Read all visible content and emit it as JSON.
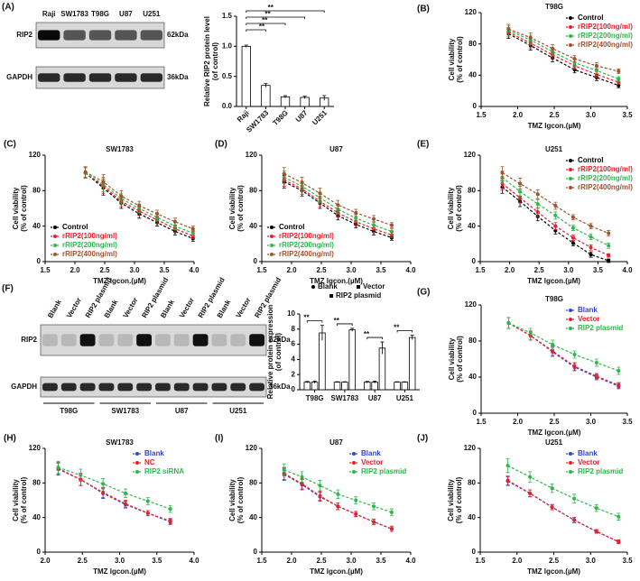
{
  "blots": [
    {
      "panel": "(A)",
      "lanes": [
        "Raji",
        "SW1783",
        "T98G",
        "U87",
        "U251"
      ],
      "rows": [
        {
          "label": "RIP2",
          "size": "62kDa"
        },
        {
          "label": "GAPDH",
          "size": "36kDa"
        }
      ]
    },
    {
      "panel": "(F)",
      "lanes": [
        "Blank",
        "Vector",
        "RIP2 plasmid",
        "Blank",
        "Vector",
        "RIP2 plasmid",
        "Blank",
        "Vector",
        "RIP2 plasmid",
        "Blank",
        "Vector",
        "RIP2 plasmid"
      ],
      "groups": [
        "T98G",
        "SW1783",
        "U87",
        "U251"
      ],
      "rows": [
        {
          "label": "RIP2",
          "size": "62kDa"
        },
        {
          "label": "GAPDH",
          "size": "36kDa"
        }
      ]
    }
  ],
  "chart_data": [
    {
      "type": "bar",
      "ylabel": [
        "Relative RIP2 protein level",
        "(of control)"
      ],
      "categories": [
        "Raji",
        "SW1783",
        "T98G",
        "U87",
        "U251"
      ],
      "values": [
        1.0,
        0.35,
        0.16,
        0.15,
        0.14
      ],
      "errors": [
        0.02,
        0.03,
        0.02,
        0.02,
        0.04
      ],
      "color": "#ffffff",
      "ylim": [
        0,
        1.5
      ],
      "yticks": [
        {
          "value": 0,
          "label": "0.0"
        },
        0.5,
        {
          "value": 1,
          "label": "1.0"
        },
        1.5
      ],
      "xtick_rotation": 45,
      "significance": [
        {
          "label": "**",
          "pair": [
            "Raji",
            "SW1783"
          ]
        },
        {
          "label": "**",
          "pair": [
            "Raji",
            "T98G"
          ]
        },
        {
          "label": "**",
          "pair": [
            "Raji",
            "U87"
          ]
        },
        {
          "label": "**",
          "pair": [
            "Raji",
            "U251"
          ]
        }
      ]
    },
    {
      "type": "line",
      "panel": "(B)",
      "title": "T98G",
      "ylabel": [
        "Cell viability",
        "(% of control)"
      ],
      "xlabel": "TMZ lgcon.(µM)",
      "legend": "upper right",
      "x": [
        1.875,
        2.176,
        2.477,
        2.778,
        3.079,
        3.38
      ],
      "xlim": [
        1.5,
        3.5
      ],
      "xticks": [
        1.5,
        {
          "value": 2,
          "label": "2.0"
        },
        2.5,
        {
          "value": 3,
          "label": "3.0"
        },
        3.5
      ],
      "ylim": [
        0,
        120
      ],
      "yticks": [
        0,
        40,
        80,
        120
      ],
      "series": [
        {
          "name": "Control",
          "color": "#000000",
          "values": [
            93,
            78,
            62,
            47,
            37,
            27
          ],
          "errors": [
            6,
            6,
            5,
            4,
            4,
            3
          ]
        },
        {
          "name": "rRIP2(100ng/ml)",
          "color": "#e8202a",
          "values": [
            95,
            81,
            66,
            52,
            41,
            31
          ],
          "errors": [
            6,
            6,
            5,
            4,
            4,
            3
          ]
        },
        {
          "name": "rRIP2(200ng/ml)",
          "color": "#2db84a",
          "values": [
            97,
            85,
            70,
            56,
            46,
            35
          ],
          "errors": [
            6,
            6,
            5,
            4,
            4,
            3
          ]
        },
        {
          "name": "rRIP2(400ng/ml)",
          "color": "#a0522d",
          "values": [
            99,
            88,
            74,
            61,
            52,
            45
          ],
          "errors": [
            6,
            6,
            5,
            4,
            4,
            3
          ]
        }
      ]
    },
    {
      "type": "line",
      "panel": "(C)",
      "title": "SW1783",
      "ylabel": [
        "Cell viability",
        "(% of control)"
      ],
      "xlabel": "TMZ lgcon.(µM)",
      "legend": "lower left",
      "x": [
        2.176,
        2.477,
        2.778,
        3.079,
        3.38,
        3.681,
        3.982
      ],
      "xlim": [
        1.5,
        4
      ],
      "xticks": [
        1.5,
        {
          "value": 2,
          "label": "2.0"
        },
        2.5,
        {
          "value": 3,
          "label": "3.0"
        },
        3.5,
        {
          "value": 4,
          "label": "4.0"
        }
      ],
      "ylim": [
        0,
        120
      ],
      "yticks": [
        0,
        40,
        80,
        120
      ],
      "series": [
        {
          "name": "Control",
          "color": "#000000",
          "values": [
            100,
            83,
            66,
            54,
            44,
            34,
            26
          ],
          "errors": [
            6,
            8,
            6,
            5,
            4,
            4,
            3
          ]
        },
        {
          "name": "rRIP2(100ng/ml)",
          "color": "#e8202a",
          "values": [
            100,
            85,
            68,
            57,
            47,
            37,
            29
          ],
          "errors": [
            6,
            8,
            6,
            5,
            4,
            4,
            3
          ]
        },
        {
          "name": "rRIP2(200ng/ml)",
          "color": "#2db84a",
          "values": [
            100,
            87,
            71,
            60,
            50,
            40,
            32
          ],
          "errors": [
            6,
            8,
            6,
            5,
            4,
            4,
            3
          ]
        },
        {
          "name": "rRIP2(400ng/ml)",
          "color": "#a0522d",
          "values": [
            101,
            90,
            74,
            63,
            54,
            45,
            37
          ],
          "errors": [
            6,
            8,
            6,
            5,
            4,
            4,
            3
          ]
        }
      ]
    },
    {
      "type": "line",
      "panel": "(D)",
      "title": "U87",
      "ylabel": [
        "Cell viability",
        "(% of control)"
      ],
      "xlabel": "TMZ lgcon.(µM)",
      "legend": "lower left",
      "x": [
        1.875,
        2.176,
        2.477,
        2.778,
        3.079,
        3.38,
        3.681
      ],
      "xlim": [
        1.5,
        4
      ],
      "xticks": [
        1.5,
        {
          "value": 2,
          "label": "2.0"
        },
        2.5,
        {
          "value": 3,
          "label": "3.0"
        },
        3.5,
        {
          "value": 4,
          "label": "4.0"
        }
      ],
      "ylim": [
        0,
        120
      ],
      "yticks": [
        0,
        40,
        80,
        120
      ],
      "series": [
        {
          "name": "Control",
          "color": "#000000",
          "values": [
            90,
            80,
            66,
            52,
            42,
            34,
            27
          ],
          "errors": [
            7,
            6,
            6,
            5,
            4,
            4,
            3
          ]
        },
        {
          "name": "rRIP2(100ng/ml)",
          "color": "#e8202a",
          "values": [
            92,
            82,
            68,
            55,
            45,
            37,
            30
          ],
          "errors": [
            7,
            6,
            6,
            5,
            4,
            4,
            3
          ]
        },
        {
          "name": "rRIP2(200ng/ml)",
          "color": "#2db84a",
          "values": [
            95,
            85,
            72,
            59,
            49,
            41,
            34
          ],
          "errors": [
            7,
            6,
            6,
            5,
            4,
            4,
            3
          ]
        },
        {
          "name": "rRIP2(400ng/ml)",
          "color": "#a0522d",
          "values": [
            99,
            89,
            77,
            64,
            55,
            48,
            41
          ],
          "errors": [
            7,
            6,
            6,
            5,
            4,
            4,
            3
          ]
        }
      ]
    },
    {
      "type": "line",
      "panel": "(E)",
      "title": "U251",
      "ylabel": [
        "Cell viability",
        "(% of control)"
      ],
      "xlabel": "TMZ lgcon.(µM)",
      "legend": "upper right",
      "x": [
        1.875,
        2.176,
        2.477,
        2.778,
        3.079,
        3.38,
        3.681
      ],
      "xlim": [
        1.5,
        4
      ],
      "xticks": [
        1.5,
        {
          "value": 2,
          "label": "2.0"
        },
        2.5,
        {
          "value": 3,
          "label": "3.0"
        },
        3.5,
        {
          "value": 4,
          "label": "4.0"
        }
      ],
      "ylim": [
        0,
        120
      ],
      "yticks": [
        0,
        40,
        80,
        120
      ],
      "series": [
        {
          "name": "Control",
          "color": "#000000",
          "values": [
            84,
            68,
            51,
            35,
            21,
            8,
            1
          ],
          "errors": [
            7,
            6,
            5,
            4,
            3,
            3,
            2
          ]
        },
        {
          "name": "rRIP2(100ng/ml)",
          "color": "#e8202a",
          "values": [
            88,
            72,
            56,
            40,
            27,
            16,
            7
          ],
          "errors": [
            7,
            6,
            5,
            4,
            3,
            3,
            2
          ]
        },
        {
          "name": "rRIP2(200ng/ml)",
          "color": "#2db84a",
          "values": [
            95,
            79,
            65,
            52,
            38,
            28,
            18
          ],
          "errors": [
            7,
            6,
            5,
            4,
            3,
            3,
            3
          ]
        },
        {
          "name": "rRIP2(400ng/ml)",
          "color": "#a0522d",
          "values": [
            100,
            88,
            76,
            63,
            50,
            40,
            32
          ],
          "errors": [
            7,
            6,
            5,
            4,
            3,
            3,
            3
          ]
        }
      ]
    },
    {
      "type": "bar",
      "ylabel": [
        "Relative protein expression",
        "(of control)"
      ],
      "categories": [
        "T98G",
        "SW1783",
        "U87",
        "U251"
      ],
      "ylim": [
        0,
        10
      ],
      "yticks": [
        0,
        2,
        4,
        6,
        8,
        10
      ],
      "series": [
        {
          "name": "Blank",
          "color": "#ffffff",
          "values": [
            1,
            1,
            1,
            1
          ],
          "errors": [
            0.1,
            0.05,
            0.1,
            0.05
          ]
        },
        {
          "name": "Vector",
          "color": "#ffffff",
          "values": [
            1,
            1,
            1,
            1
          ],
          "errors": [
            0.15,
            0.05,
            0.15,
            0.05
          ]
        },
        {
          "name": "RIP2 plasmid",
          "color": "#ffffff",
          "values": [
            7.5,
            7.9,
            5.5,
            6.9
          ],
          "errors": [
            1.0,
            0.2,
            0.8,
            0.3
          ]
        }
      ],
      "significance": [
        "**",
        "**",
        "**",
        "**"
      ]
    },
    {
      "type": "line",
      "panel": "(G)",
      "title": "T98G",
      "ylabel": [
        "Cell viability",
        "(% of control)"
      ],
      "xlabel": "TMZ lgcon.(µM)",
      "legend": "upper right",
      "x": [
        1.875,
        2.176,
        2.477,
        2.778,
        3.079,
        3.38
      ],
      "xlim": [
        1.5,
        3.5
      ],
      "xticks": [
        1.5,
        {
          "value": 2,
          "label": "2.0"
        },
        2.5,
        {
          "value": 3,
          "label": "3.0"
        },
        3.5
      ],
      "ylim": [
        0,
        120
      ],
      "yticks": [
        0,
        40,
        80,
        120
      ],
      "series": [
        {
          "name": "Blank",
          "color": "#3344cc",
          "values": [
            100,
            86,
            68,
            51,
            40,
            30
          ],
          "errors": [
            6,
            5,
            5,
            4,
            3,
            3
          ]
        },
        {
          "name": "Vector",
          "color": "#e8202a",
          "values": [
            100,
            86,
            69,
            52,
            41,
            31
          ],
          "errors": [
            6,
            5,
            5,
            4,
            3,
            3
          ]
        },
        {
          "name": "RIP2 plasmid",
          "color": "#2db84a",
          "values": [
            100,
            89,
            76,
            65,
            56,
            47
          ],
          "errors": [
            6,
            5,
            5,
            4,
            4,
            4
          ]
        }
      ]
    },
    {
      "type": "line",
      "panel": "(H)",
      "title": "SW1783",
      "ylabel": [
        "Cell viability",
        "(% of control)"
      ],
      "xlabel": "TMZ lgcon.(µM)",
      "legend": "upper right",
      "x": [
        2.176,
        2.477,
        2.778,
        3.079,
        3.38,
        3.681
      ],
      "xlim": [
        2,
        4
      ],
      "xticks": [
        {
          "value": 2,
          "label": "2.0"
        },
        2.5,
        {
          "value": 3,
          "label": "3.0"
        },
        3.5,
        {
          "value": 4,
          "label": "4.0"
        }
      ],
      "ylim": [
        0,
        120
      ],
      "yticks": [
        0,
        40,
        80,
        120
      ],
      "series": [
        {
          "name": "Blank",
          "color": "#3344cc",
          "values": [
            96,
            84,
            68,
            55,
            45,
            35
          ],
          "errors": [
            7,
            7,
            6,
            4,
            3,
            3
          ]
        },
        {
          "name": "NC",
          "color": "#e8202a",
          "values": [
            97,
            84,
            69,
            56,
            45,
            36
          ],
          "errors": [
            7,
            7,
            6,
            4,
            3,
            3
          ]
        },
        {
          "name": "RIP2 siRNA",
          "color": "#2db84a",
          "values": [
            98,
            89,
            79,
            68,
            59,
            50
          ],
          "errors": [
            7,
            7,
            6,
            5,
            4,
            4
          ]
        }
      ]
    },
    {
      "type": "line",
      "panel": "(I)",
      "title": "U87",
      "ylabel": [
        "Cell viability",
        "(% of control)"
      ],
      "xlabel": "TMZ lgcon.(µM)",
      "legend": "upper right",
      "x": [
        1.875,
        2.176,
        2.477,
        2.778,
        3.079,
        3.38,
        3.681
      ],
      "xlim": [
        1.5,
        4
      ],
      "xticks": [
        1.5,
        {
          "value": 2,
          "label": "2.0"
        },
        2.5,
        {
          "value": 3,
          "label": "3.0"
        },
        3.5,
        {
          "value": 4,
          "label": "4.0"
        }
      ],
      "ylim": [
        0,
        120
      ],
      "yticks": [
        0,
        40,
        80,
        120
      ],
      "series": [
        {
          "name": "Blank",
          "color": "#3344cc",
          "values": [
            90,
            78,
            64,
            53,
            44,
            35,
            27
          ],
          "errors": [
            7,
            6,
            5,
            4,
            3,
            3,
            3
          ]
        },
        {
          "name": "Vector",
          "color": "#e8202a",
          "values": [
            91,
            79,
            65,
            53,
            44,
            35,
            27
          ],
          "errors": [
            7,
            6,
            5,
            4,
            3,
            3,
            3
          ]
        },
        {
          "name": "RIP2 plasmid",
          "color": "#2db84a",
          "values": [
            95,
            87,
            77,
            67,
            60,
            53,
            46
          ],
          "errors": [
            7,
            6,
            6,
            5,
            4,
            4,
            4
          ]
        }
      ]
    },
    {
      "type": "line",
      "panel": "(J)",
      "title": "U251",
      "ylabel": [
        "Cell viability",
        "(% of control)"
      ],
      "xlabel": "TMZ lgcon.(µM)",
      "legend": "upper right",
      "x": [
        1.875,
        2.176,
        2.477,
        2.778,
        3.079,
        3.38
      ],
      "xlim": [
        1.5,
        3.5
      ],
      "xticks": [
        1.5,
        {
          "value": 2,
          "label": "2.0"
        },
        2.5,
        {
          "value": 3,
          "label": "3.0"
        },
        3.5
      ],
      "ylim": [
        0,
        120
      ],
      "yticks": [
        0,
        40,
        80,
        120
      ],
      "series": [
        {
          "name": "Blank",
          "color": "#3344cc",
          "values": [
            82,
            68,
            52,
            37,
            24,
            12
          ],
          "errors": [
            5,
            4,
            3,
            3,
            2,
            2
          ]
        },
        {
          "name": "Vector",
          "color": "#e8202a",
          "values": [
            83,
            68,
            52,
            37,
            24,
            12
          ],
          "errors": [
            5,
            4,
            3,
            3,
            2,
            2
          ]
        },
        {
          "name": "RIP2 plasmid",
          "color": "#2db84a",
          "values": [
            100,
            87,
            74,
            62,
            51,
            41
          ],
          "errors": [
            8,
            6,
            5,
            5,
            4,
            4
          ]
        }
      ]
    }
  ]
}
